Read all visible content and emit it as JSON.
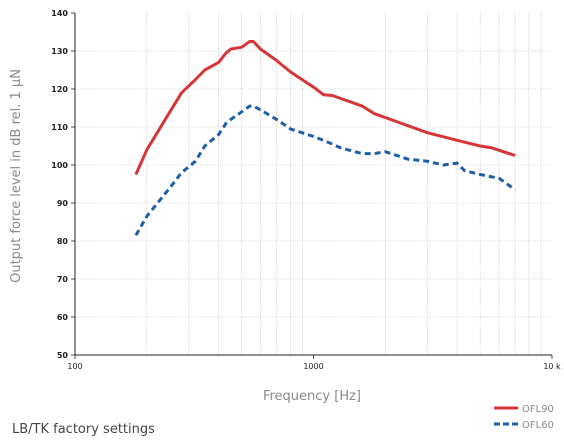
{
  "chart_data": {
    "type": "line",
    "x_scale": "log",
    "xlim": [
      100,
      10000
    ],
    "ylim": [
      50,
      140
    ],
    "grid": true,
    "xlabel": "Frequency [Hz]",
    "ylabel": "Output force level in dB rel. 1 µN",
    "x_tick_labels": [
      "100",
      "1000",
      "10 k"
    ],
    "y_tick_labels": [
      "50",
      "60",
      "70",
      "80",
      "90",
      "100",
      "110",
      "120",
      "130",
      "140"
    ],
    "legend_position": "bottom-right",
    "series": [
      {
        "name": "OFL90",
        "color": "#d63638",
        "style": "solid",
        "x": [
          180,
          200,
          250,
          280,
          320,
          350,
          400,
          430,
          450,
          500,
          540,
          560,
          600,
          700,
          800,
          1000,
          1100,
          1200,
          1300,
          1600,
          1800,
          2000,
          3000,
          4000,
          5000,
          5600,
          7000
        ],
        "y": [
          97.5,
          104,
          114,
          119,
          122.5,
          125,
          127,
          129.5,
          130.5,
          131,
          132.5,
          132.5,
          130.5,
          127.5,
          124.5,
          120.5,
          118.5,
          118.3,
          117.5,
          115.5,
          113.5,
          112.5,
          108.5,
          106.5,
          105,
          104.5,
          102.5
        ]
      },
      {
        "name": "OFL60",
        "color": "#1e5ea8",
        "style": "dashed",
        "x": [
          180,
          200,
          250,
          280,
          320,
          350,
          400,
          430,
          450,
          500,
          540,
          560,
          600,
          700,
          800,
          1000,
          1100,
          1200,
          1300,
          1600,
          1800,
          2000,
          2500,
          3000,
          3500,
          4000,
          4300,
          5000,
          6000,
          7000
        ],
        "y": [
          81.5,
          86.5,
          94,
          98,
          101,
          105,
          108,
          111,
          112,
          114,
          115.5,
          115.5,
          114.5,
          112,
          109.5,
          107.5,
          106.5,
          105.5,
          104.5,
          103,
          103,
          103.5,
          101.5,
          101,
          100,
          100.5,
          98.5,
          97.5,
          96.5,
          93.5
        ]
      }
    ]
  },
  "footnote": "LB/TK factory settings"
}
